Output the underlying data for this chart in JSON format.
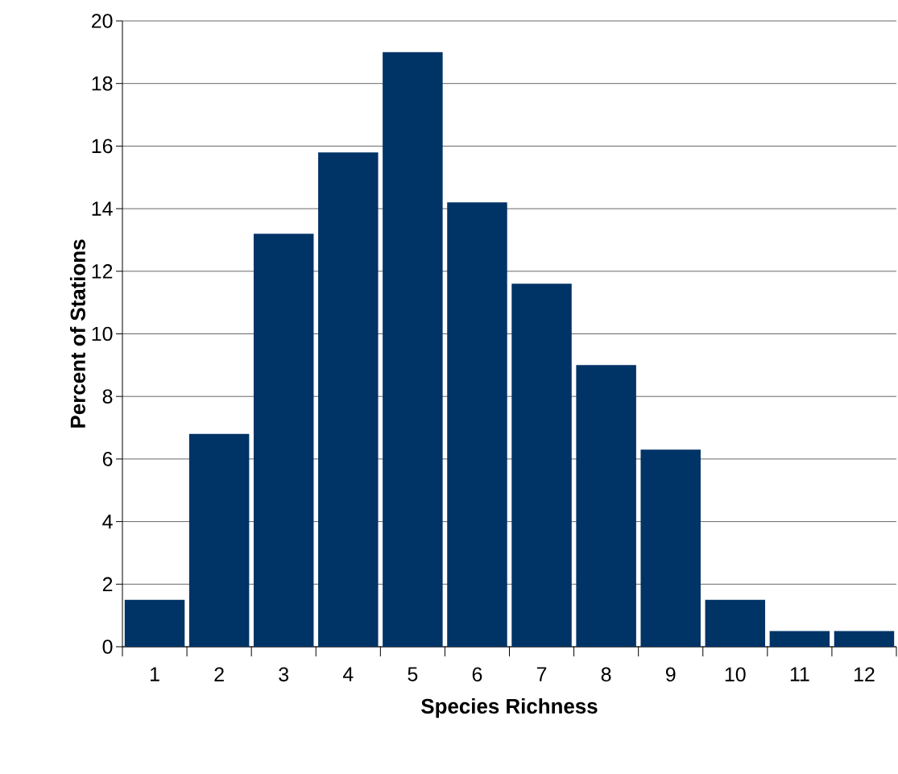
{
  "chart_data": {
    "type": "bar",
    "xlabel": "Species Richness",
    "ylabel": "Percent of Stations",
    "categories": [
      "1",
      "2",
      "3",
      "4",
      "5",
      "6",
      "7",
      "8",
      "9",
      "10",
      "11",
      "12"
    ],
    "values": [
      1.5,
      6.8,
      13.2,
      15.8,
      19.0,
      14.2,
      11.6,
      9.0,
      6.3,
      1.5,
      0.5,
      0.5
    ],
    "color": "#003366",
    "ylim": [
      0,
      20
    ],
    "yticks": [
      0,
      2,
      4,
      6,
      8,
      10,
      12,
      14,
      16,
      18,
      20
    ],
    "grid": "y"
  }
}
